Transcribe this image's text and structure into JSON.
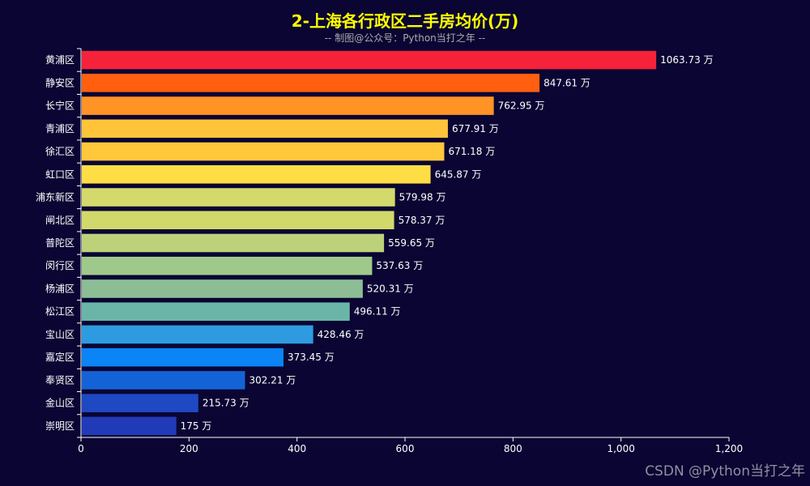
{
  "chart_data": {
    "type": "bar",
    "orientation": "horizontal",
    "title": "2-上海各行政区二手房均价(万)",
    "subtitle": "-- 制图@公众号：Python当打之年 --",
    "xlabel": "",
    "ylabel": "",
    "xlim": [
      0,
      1200
    ],
    "x_ticks": [
      0,
      200,
      400,
      600,
      800,
      1000,
      1200
    ],
    "x_tick_labels": [
      "0",
      "200",
      "400",
      "600",
      "800",
      "1,000",
      "1,200"
    ],
    "value_suffix": " 万",
    "categories": [
      "黄浦区",
      "静安区",
      "长宁区",
      "青浦区",
      "徐汇区",
      "虹口区",
      "浦东新区",
      "闸北区",
      "普陀区",
      "闵行区",
      "杨浦区",
      "松江区",
      "宝山区",
      "嘉定区",
      "奉贤区",
      "金山区",
      "崇明区"
    ],
    "values": [
      1063.73,
      847.61,
      762.95,
      677.91,
      671.18,
      645.87,
      579.98,
      578.37,
      559.65,
      537.63,
      520.31,
      496.11,
      428.46,
      373.45,
      302.21,
      215.73,
      175
    ],
    "value_labels": [
      "1063.73 万",
      "847.61 万",
      "762.95 万",
      "677.91 万",
      "671.18 万",
      "645.87 万",
      "579.98 万",
      "578.37 万",
      "559.65 万",
      "537.63 万",
      "520.31 万",
      "496.11 万",
      "428.46 万",
      "373.45 万",
      "302.21 万",
      "215.73 万",
      "175 万"
    ],
    "colors": [
      "#f5223a",
      "#ff5f0e",
      "#ff9326",
      "#ffc43a",
      "#ffc83b",
      "#ffdd44",
      "#d4d96c",
      "#d2d96b",
      "#bcd17a",
      "#9fc98a",
      "#8cbd94",
      "#6bb5a8",
      "#2e9be0",
      "#0b84f5",
      "#1463d6",
      "#1e49c2",
      "#213ab7"
    ],
    "axis_color": "#ffffff",
    "background": "#0a0533",
    "grid": false
  },
  "watermark": "CSDN @Python当打之年"
}
